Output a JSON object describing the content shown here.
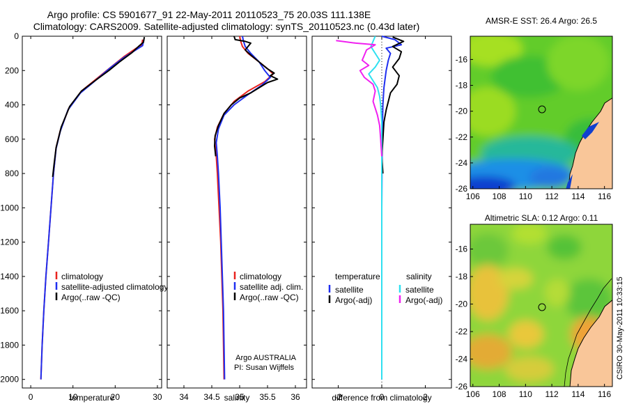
{
  "figure": {
    "title_line1": "Argo profile: CS 5901677_91 22-May-2011 20110523_75 20.03S 111.138E",
    "title_line2": "Climatology: CARS2009. Satellite-adjusted climatology: synTS_20110523.nc (0.43d later)",
    "side_label": "CSIRO 30-May-2011 10:33:15"
  },
  "colors": {
    "climatology": "#e8231f",
    "satellite": "#1f2ff0",
    "argo": "#000000",
    "sal_satellite": "#2fe0f0",
    "sal_argo": "#f020f0",
    "land": "#f9c699"
  },
  "chart_data": [
    {
      "type": "line",
      "id": "temperature",
      "xlabel": "temperature",
      "ylabel": "",
      "xlim": [
        -2,
        31
      ],
      "ylim": [
        2050,
        0
      ],
      "xticks": [
        "0",
        "10",
        "20",
        "30"
      ],
      "xtick_values": [
        0,
        10,
        20,
        30
      ],
      "yticks": [
        "0",
        "200",
        "400",
        "600",
        "800",
        "1000",
        "1200",
        "1400",
        "1600",
        "1800",
        "2000"
      ],
      "ytick_values": [
        0,
        200,
        400,
        600,
        800,
        1000,
        1200,
        1400,
        1600,
        1800,
        2000
      ],
      "legend": [
        "climatology",
        "satellite-adjusted climatology",
        "Argo(..raw -QC)"
      ],
      "series": [
        {
          "name": "climatology",
          "color_key": "climatology",
          "points": [
            [
              26.5,
              20
            ],
            [
              26.3,
              50
            ],
            [
              25,
              70
            ],
            [
              22,
              120
            ],
            [
              19,
              180
            ],
            [
              15,
              260
            ],
            [
              12,
              320
            ],
            [
              9,
              420
            ],
            [
              7,
              550
            ],
            [
              6,
              650
            ],
            [
              5.4,
              800
            ],
            [
              4.8,
              1000
            ],
            [
              4.2,
              1200
            ],
            [
              3.6,
              1400
            ],
            [
              3.1,
              1600
            ],
            [
              2.7,
              1800
            ],
            [
              2.4,
              2000
            ]
          ]
        },
        {
          "name": "satellite-adjusted climatology",
          "color_key": "satellite",
          "points": [
            [
              26.8,
              20
            ],
            [
              26.5,
              55
            ],
            [
              25.2,
              75
            ],
            [
              22,
              125
            ],
            [
              18.8,
              185
            ],
            [
              15,
              265
            ],
            [
              11.8,
              330
            ],
            [
              8.8,
              430
            ],
            [
              7,
              555
            ],
            [
              6,
              655
            ],
            [
              5.4,
              800
            ],
            [
              4.8,
              1000
            ],
            [
              4.2,
              1200
            ],
            [
              3.6,
              1400
            ],
            [
              3.1,
              1600
            ],
            [
              2.7,
              1800
            ],
            [
              2.4,
              2000
            ]
          ]
        },
        {
          "name": "Argo(..raw -QC)",
          "color_key": "argo",
          "points": [
            [
              26.9,
              5
            ],
            [
              26.7,
              35
            ],
            [
              25.5,
              60
            ],
            [
              24,
              95
            ],
            [
              21,
              150
            ],
            [
              18.5,
              200
            ],
            [
              15.2,
              260
            ],
            [
              12,
              320
            ],
            [
              9.2,
              410
            ],
            [
              7.2,
              530
            ],
            [
              6,
              650
            ],
            [
              5.5,
              750
            ],
            [
              5.2,
              820
            ]
          ]
        }
      ]
    },
    {
      "type": "line",
      "id": "salinity",
      "xlabel": "salinity",
      "xlim": [
        33.7,
        36.2
      ],
      "ylim": [
        2050,
        0
      ],
      "xticks": [
        "34",
        "34.5",
        "35",
        "35.5",
        "36"
      ],
      "xtick_values": [
        34,
        34.5,
        35,
        35.5,
        36
      ],
      "legend": [
        "climatology",
        "satellite adj. clim.",
        "Argo(..raw -QC)"
      ],
      "annotation_line1": "Argo AUSTRALIA",
      "annotation_line2": "PI: Susan Wijffels",
      "series": [
        {
          "name": "climatology",
          "color_key": "climatology",
          "points": [
            [
              35,
              0
            ],
            [
              35.02,
              30
            ],
            [
              35.05,
              60
            ],
            [
              35.15,
              100
            ],
            [
              35.35,
              150
            ],
            [
              35.52,
              195
            ],
            [
              35.6,
              220
            ],
            [
              35.45,
              265
            ],
            [
              35.15,
              320
            ],
            [
              34.9,
              380
            ],
            [
              34.72,
              450
            ],
            [
              34.6,
              530
            ],
            [
              34.55,
              600
            ],
            [
              34.58,
              700
            ],
            [
              34.6,
              800
            ],
            [
              34.63,
              1000
            ],
            [
              34.66,
              1200
            ],
            [
              34.68,
              1400
            ],
            [
              34.7,
              1600
            ],
            [
              34.71,
              1800
            ],
            [
              34.72,
              2000
            ]
          ]
        },
        {
          "name": "satellite adj. clim.",
          "color_key": "satellite",
          "points": [
            [
              35.05,
              0
            ],
            [
              35.07,
              30
            ],
            [
              35.1,
              60
            ],
            [
              35.2,
              100
            ],
            [
              35.35,
              150
            ],
            [
              35.45,
              200
            ],
            [
              35.55,
              240
            ],
            [
              35.4,
              285
            ],
            [
              35.15,
              340
            ],
            [
              34.9,
              400
            ],
            [
              34.72,
              460
            ],
            [
              34.62,
              540
            ],
            [
              34.58,
              620
            ],
            [
              34.6,
              700
            ],
            [
              34.62,
              800
            ],
            [
              34.65,
              1000
            ],
            [
              34.67,
              1200
            ],
            [
              34.69,
              1400
            ],
            [
              34.71,
              1600
            ],
            [
              34.72,
              1800
            ],
            [
              34.73,
              2000
            ]
          ]
        },
        {
          "name": "Argo(..raw -QC)",
          "color_key": "argo",
          "points": [
            [
              34.9,
              0
            ],
            [
              34.92,
              20
            ],
            [
              35.1,
              30
            ],
            [
              35.2,
              40
            ],
            [
              35.15,
              60
            ],
            [
              35.1,
              80
            ],
            [
              35.2,
              110
            ],
            [
              35.35,
              150
            ],
            [
              35.5,
              190
            ],
            [
              35.62,
              215
            ],
            [
              35.55,
              230
            ],
            [
              35.68,
              250
            ],
            [
              35.5,
              270
            ],
            [
              35.35,
              300
            ],
            [
              35.2,
              330
            ],
            [
              35,
              360
            ],
            [
              34.85,
              400
            ],
            [
              34.72,
              450
            ],
            [
              34.62,
              520
            ],
            [
              34.56,
              580
            ],
            [
              34.55,
              640
            ],
            [
              34.57,
              700
            ]
          ]
        }
      ]
    },
    {
      "type": "line",
      "id": "difference",
      "xlabel": "difference from climatology",
      "xlim": [
        -3.2,
        3.2
      ],
      "ylim": [
        2050,
        0
      ],
      "xticks": [
        "-2",
        "0",
        "2"
      ],
      "xtick_values": [
        -2,
        0,
        2
      ],
      "legend_left_title": "temperature",
      "legend_right_title": "salinity",
      "legend_left": [
        "satellite",
        "Argo(-adj)"
      ],
      "legend_right": [
        "satellite",
        "Argo(-adj)"
      ],
      "series": [
        {
          "name": "temperature satellite",
          "color_key": "satellite",
          "points": [
            [
              0,
              0
            ],
            [
              0.6,
              20
            ],
            [
              0.9,
              50
            ],
            [
              0.2,
              70
            ],
            [
              0.4,
              100
            ],
            [
              0.3,
              140
            ],
            [
              0.2,
              200
            ],
            [
              0.1,
              300
            ],
            [
              0.05,
              400
            ],
            [
              0.02,
              600
            ],
            [
              0,
              1000
            ],
            [
              0,
              2000
            ]
          ]
        },
        {
          "name": "temperature Argo(-adj)",
          "color_key": "argo",
          "points": [
            [
              0.5,
              5
            ],
            [
              1.0,
              30
            ],
            [
              0.5,
              60
            ],
            [
              0.9,
              90
            ],
            [
              0.8,
              130
            ],
            [
              0.5,
              180
            ],
            [
              0.8,
              230
            ],
            [
              0.7,
              280
            ],
            [
              0.4,
              330
            ],
            [
              0.3,
              380
            ],
            [
              0.2,
              430
            ],
            [
              0.1,
              500
            ],
            [
              0.05,
              600
            ],
            [
              0,
              700
            ],
            [
              0.05,
              800
            ]
          ]
        },
        {
          "name": "salinity satellite",
          "color_key": "sal_satellite",
          "points": [
            [
              -0.3,
              0
            ],
            [
              -0.4,
              30
            ],
            [
              -0.5,
              60
            ],
            [
              -0.3,
              100
            ],
            [
              -0.1,
              140
            ],
            [
              -0.3,
              180
            ],
            [
              -0.6,
              220
            ],
            [
              -0.4,
              260
            ],
            [
              -0.2,
              300
            ],
            [
              -0.1,
              350
            ],
            [
              -0.05,
              400
            ],
            [
              0,
              500
            ],
            [
              0,
              700
            ],
            [
              0,
              1000
            ],
            [
              0,
              2000
            ]
          ]
        },
        {
          "name": "salinity Argo(-adj)",
          "color_key": "sal_argo",
          "points": [
            [
              -2.1,
              25
            ],
            [
              -1.2,
              40
            ],
            [
              -0.3,
              50
            ],
            [
              -0.7,
              80
            ],
            [
              -0.9,
              140
            ],
            [
              -0.6,
              170
            ],
            [
              -1.0,
              200
            ],
            [
              -0.8,
              240
            ],
            [
              -0.4,
              280
            ],
            [
              -0.3,
              320
            ],
            [
              -0.4,
              380
            ],
            [
              -0.2,
              460
            ],
            [
              -0.1,
              520
            ],
            [
              -0.05,
              600
            ],
            [
              0,
              700
            ]
          ]
        }
      ]
    },
    {
      "type": "heatmap",
      "id": "sst",
      "title": "AMSR-E SST: 26.4 Argo: 26.5",
      "xlim": [
        105.8,
        116.6
      ],
      "ylim": [
        -26,
        -14.2
      ],
      "xticks": [
        "106",
        "108",
        "110",
        "112",
        "114",
        "116"
      ],
      "xtick_values": [
        106,
        108,
        110,
        112,
        114,
        116
      ],
      "yticks": [
        "-16",
        "-18",
        "-20",
        "-22",
        "-24",
        "-26"
      ],
      "ytick_values": [
        -16,
        -18,
        -20,
        -22,
        -24,
        -26
      ],
      "marker": {
        "lon": 111.14,
        "lat": -20.03
      }
    },
    {
      "type": "heatmap",
      "id": "sla",
      "title": "Altimetric SLA: 0.12 Argo: 0.11",
      "xlim": [
        105.8,
        116.6
      ],
      "ylim": [
        -26,
        -14.2
      ],
      "xticks": [
        "106",
        "108",
        "110",
        "112",
        "114",
        "116"
      ],
      "xtick_values": [
        106,
        108,
        110,
        112,
        114,
        116
      ],
      "yticks": [
        "-16",
        "-18",
        "-20",
        "-22",
        "-24",
        "-26"
      ],
      "ytick_values": [
        -16,
        -18,
        -20,
        -22,
        -24,
        -26
      ],
      "marker": {
        "lon": 111.14,
        "lat": -20.03
      }
    }
  ]
}
